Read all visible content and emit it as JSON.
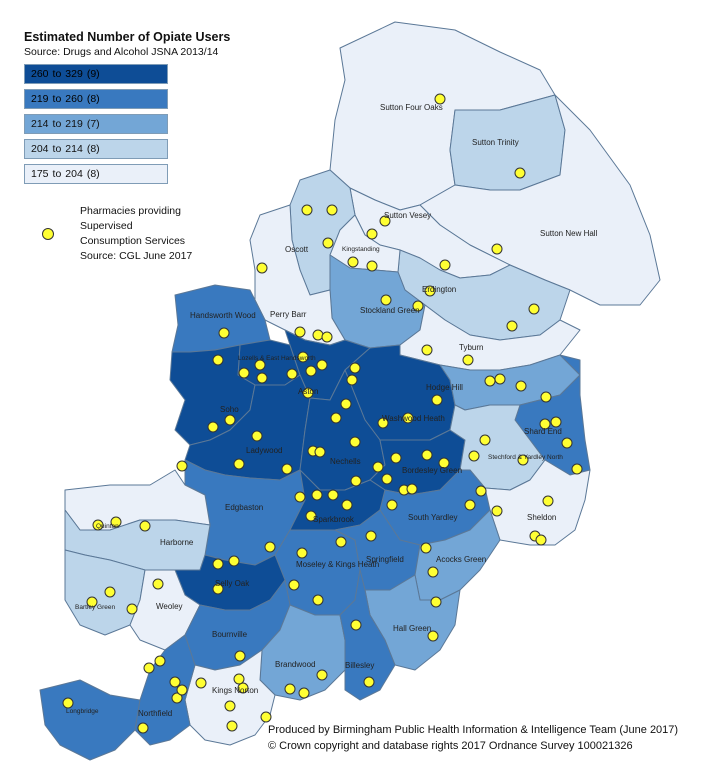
{
  "map": {
    "title": "Estimated Number of Opiate Users",
    "source": "Source: Drugs and Alcohol JSNA 2013/14",
    "legend": [
      {
        "from": "260",
        "to": "329",
        "count": "(9)",
        "color": "#0e4d96"
      },
      {
        "from": "219",
        "to": "260",
        "count": "(8)",
        "color": "#3979bf"
      },
      {
        "from": "214",
        "to": "219",
        "count": "(7)",
        "color": "#73a6d6"
      },
      {
        "from": "204",
        "to": "214",
        "count": "(8)",
        "color": "#bcd5ea"
      },
      {
        "from": "175",
        "to": "204",
        "count": "(8)",
        "color": "#eaf0f9"
      }
    ],
    "range_word": "to",
    "pharmacy_legend": {
      "line1": "Pharmacies providing",
      "line2": "Supervised",
      "line3": "Consumption Services",
      "line4": "Source: CGL June 2017",
      "color": "#ffff33"
    },
    "credit": {
      "line1": "Produced by Birmingham Public Health Information & Intelligence Team (June 2017)",
      "line2": "© Crown copyright and database rights 2017 Ordnance Survey 100021326"
    },
    "wards": {
      "sutton_four_oaks": "Sutton Four Oaks",
      "sutton_trinity": "Sutton Trinity",
      "sutton_new_hall": "Sutton New Hall",
      "sutton_vesey": "Sutton Vesey",
      "oscott": "Oscott",
      "kingstanding": "Kingstanding",
      "erdington": "Erdington",
      "stockland_green": "Stockland Green",
      "perry_barr": "Perry Barr",
      "handsworth_wood": "Handsworth Wood",
      "tyburn": "Tyburn",
      "lozells": "Lozells & East Handsworth",
      "aston": "Aston",
      "hodge_hill": "Hodge Hill",
      "soho": "Soho",
      "washwood_heath": "Washwood Heath",
      "shard_end": "Shard End",
      "ladywood": "Ladywood",
      "nechells": "Nechells",
      "bordesley_green": "Bordesley Green",
      "stechford": "Stechford & Yardley North",
      "edgbaston": "Edgbaston",
      "quinton": "Quinton",
      "harborne": "Harborne",
      "sparkbrook": "Sparkbrook",
      "south_yardley": "South Yardley",
      "sheldon": "Sheldon",
      "moseley": "Moseley & Kings Heath",
      "springfield": "Springfield",
      "acocks_green": "Acocks Green",
      "selly_oak": "Selly Oak",
      "bartley_green": "Bartley Green",
      "weoley": "Weoley",
      "hall_green": "Hall Green",
      "bournville": "Bournville",
      "brandwood": "Brandwood",
      "billesley": "Billesley",
      "kings_norton": "Kings Norton",
      "longbridge": "Longbridge",
      "northfield": "Northfield"
    }
  }
}
